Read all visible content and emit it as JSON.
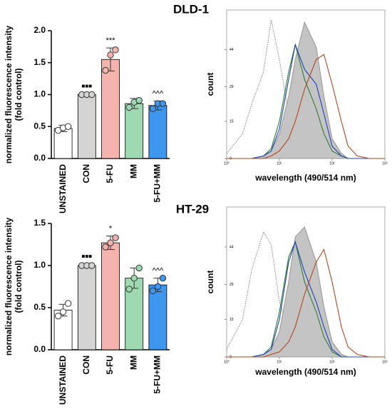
{
  "chart_data": [
    {
      "type": "bar",
      "y_label": [
        "normalized fluorescence intensity",
        "(fold control)"
      ],
      "categories": [
        "UNSTAINED",
        "CON",
        "5-FU",
        "MM",
        "5-FU+MM"
      ],
      "values": [
        0.47,
        1.0,
        1.55,
        0.86,
        0.83
      ],
      "errors": [
        0.05,
        0.02,
        0.18,
        0.08,
        0.07
      ],
      "points": [
        [
          0.44,
          0.48,
          0.5
        ],
        [
          1.0,
          1.0,
          1.0
        ],
        [
          1.38,
          1.62,
          1.7
        ],
        [
          0.8,
          0.88,
          0.91
        ],
        [
          0.78,
          0.86,
          0.86
        ]
      ],
      "colors": [
        "#ffffff",
        "#d4d4d4",
        "#f5b3ad",
        "#9ed9b1",
        "#3d97ee"
      ],
      "annotations": [
        {
          "category": "CON",
          "text": "■■■"
        },
        {
          "category": "5-FU",
          "text": "***"
        },
        {
          "category": "5-FU+MM",
          "text": "^^^"
        }
      ],
      "ylim": [
        0,
        2.0
      ],
      "yticks": [
        {
          "value": 0,
          "label": "0.0"
        },
        0.5,
        {
          "value": 1,
          "label": "1.0"
        },
        1.5,
        {
          "value": 2,
          "label": "2.0"
        }
      ]
    },
    {
      "type": "line",
      "title": "DLD-1",
      "x_label": "wavelength (490/514 nm)",
      "y_label": "count",
      "log_x": true,
      "x": [
        1,
        2,
        3,
        5,
        7,
        10,
        15,
        20,
        30,
        50,
        70,
        100,
        150,
        200,
        300,
        500,
        1000
      ],
      "series": [
        {
          "color": "#8a8a8a",
          "dash": "dotted",
          "values": [
            2,
            10,
            22,
            35,
            56,
            40,
            18,
            8,
            4,
            2,
            1,
            0,
            0,
            0,
            0,
            0,
            0
          ]
        },
        {
          "color": "#9a9a9a",
          "area": true,
          "values": [
            0,
            0,
            0,
            1,
            3,
            10,
            25,
            40,
            55,
            45,
            25,
            8,
            2,
            0,
            0,
            0,
            0
          ]
        },
        {
          "color": "#2e7d32",
          "values": [
            0,
            0,
            0,
            1,
            4,
            15,
            35,
            46,
            32,
            20,
            10,
            3,
            1,
            0,
            0,
            0,
            0
          ]
        },
        {
          "color": "#1f3fbf",
          "values": [
            0,
            0,
            0,
            1,
            3,
            12,
            32,
            46,
            36,
            30,
            18,
            5,
            1,
            0,
            0,
            0,
            0
          ]
        },
        {
          "color": "#b5451b",
          "values": [
            0,
            0,
            0,
            0,
            1,
            3,
            8,
            15,
            28,
            40,
            42,
            30,
            15,
            5,
            1,
            0,
            0
          ]
        }
      ],
      "xlim": [
        1,
        1000
      ],
      "xticks": [
        {
          "value": 1,
          "label": "10⁰"
        },
        {
          "value": 10,
          "label": "10¹"
        },
        {
          "value": 100,
          "label": "10²"
        },
        {
          "value": 1000,
          "label": "10³"
        }
      ],
      "ylim": [
        0,
        60
      ],
      "yticks": [
        0,
        15,
        29,
        44
      ]
    },
    {
      "type": "bar",
      "y_label": [
        "normalized fluorescence intensity",
        "(fold control)"
      ],
      "categories": [
        "UNSTAINED",
        "CON",
        "5-FU",
        "MM",
        "5-FU+MM"
      ],
      "values": [
        0.47,
        1.0,
        1.27,
        0.85,
        0.77
      ],
      "errors": [
        0.07,
        0.02,
        0.08,
        0.12,
        0.08
      ],
      "points": [
        [
          0.4,
          0.45,
          0.55
        ],
        [
          1.0,
          1.0,
          1.0
        ],
        [
          1.22,
          1.27,
          1.33
        ],
        [
          0.72,
          0.85,
          0.97
        ],
        [
          0.7,
          0.75,
          0.85
        ]
      ],
      "colors": [
        "#ffffff",
        "#d4d4d4",
        "#f5b3ad",
        "#9ed9b1",
        "#3d97ee"
      ],
      "annotations": [
        {
          "category": "CON",
          "text": "■■■"
        },
        {
          "category": "5-FU",
          "text": "*"
        },
        {
          "category": "5-FU+MM",
          "text": "^^^"
        }
      ],
      "ylim": [
        0,
        1.5
      ],
      "yticks": [
        {
          "value": 0,
          "label": "0.0"
        },
        0.5,
        {
          "value": 1,
          "label": "1.0"
        },
        1.5
      ]
    },
    {
      "type": "line",
      "title": "HT-29",
      "x_label": "wavelength (490/514 nm)",
      "y_label": "count",
      "log_x": true,
      "x": [
        1,
        2,
        3,
        5,
        7,
        10,
        15,
        20,
        30,
        50,
        70,
        100,
        150,
        200,
        300,
        500,
        1000
      ],
      "series": [
        {
          "color": "#8a8a8a",
          "dash": "dotted",
          "values": [
            3,
            15,
            35,
            50,
            45,
            22,
            10,
            5,
            2,
            1,
            0,
            0,
            0,
            0,
            0,
            0,
            0
          ]
        },
        {
          "color": "#9a9a9a",
          "area": true,
          "values": [
            0,
            0,
            0,
            1,
            3,
            10,
            30,
            48,
            52,
            38,
            20,
            6,
            1,
            0,
            0,
            0,
            0
          ]
        },
        {
          "color": "#2e7d32",
          "values": [
            0,
            0,
            0,
            1,
            4,
            18,
            40,
            46,
            30,
            18,
            8,
            2,
            0,
            0,
            0,
            0,
            0
          ]
        },
        {
          "color": "#1f3fbf",
          "values": [
            0,
            0,
            0,
            1,
            3,
            15,
            38,
            46,
            34,
            22,
            12,
            3,
            0,
            0,
            0,
            0,
            0
          ]
        },
        {
          "color": "#b5451b",
          "values": [
            0,
            0,
            0,
            0,
            1,
            2,
            6,
            12,
            25,
            38,
            43,
            30,
            12,
            4,
            1,
            0,
            0
          ]
        }
      ],
      "xlim": [
        1,
        1000
      ],
      "xticks": [
        {
          "value": 1,
          "label": "10⁰"
        },
        {
          "value": 10,
          "label": "10¹"
        },
        {
          "value": 100,
          "label": "10²"
        },
        {
          "value": 1000,
          "label": "10³"
        }
      ],
      "ylim": [
        0,
        60
      ],
      "yticks": [
        0,
        15,
        29,
        44
      ]
    }
  ]
}
